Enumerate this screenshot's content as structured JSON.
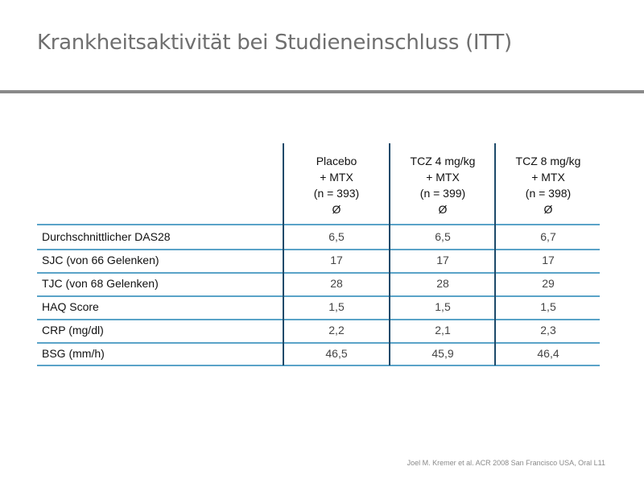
{
  "title": "Krankheitsaktivität bei Studieneinschluss (ITT)",
  "table": {
    "columns": [
      {
        "line1": "Placebo",
        "line2": "+ MTX",
        "line3": "(n = 393)",
        "line4": "Ø"
      },
      {
        "line1": "TCZ 4 mg/kg",
        "line2": "+ MTX",
        "line3": "(n = 399)",
        "line4": "Ø"
      },
      {
        "line1": "TCZ 8 mg/kg",
        "line2": "+ MTX",
        "line3": "(n = 398)",
        "line4": "Ø"
      }
    ],
    "rows": [
      {
        "label": "Durchschnittlicher DAS28",
        "values": [
          "6,5",
          "6,5",
          "6,7"
        ]
      },
      {
        "label": "SJC (von 66 Gelenken)",
        "values": [
          "17",
          "17",
          "17"
        ]
      },
      {
        "label": "TJC (von 68 Gelenken)",
        "values": [
          "28",
          "28",
          "29"
        ]
      },
      {
        "label": "HAQ Score",
        "values": [
          "1,5",
          "1,5",
          "1,5"
        ]
      },
      {
        "label": "CRP (mg/dl)",
        "values": [
          "2,2",
          "2,1",
          "2,3"
        ]
      },
      {
        "label": "BSG (mm/h)",
        "values": [
          "46,5",
          "45,9",
          "46,4"
        ]
      }
    ]
  },
  "footnote": "Joel M. Kremer et al. ACR 2008 San Francisco USA, Oral L11",
  "colors": {
    "title": "#6f6f6f",
    "rule": "#8a8a8a",
    "column_divider": "#1d4a6a",
    "row_divider": "#5aa3c8"
  }
}
